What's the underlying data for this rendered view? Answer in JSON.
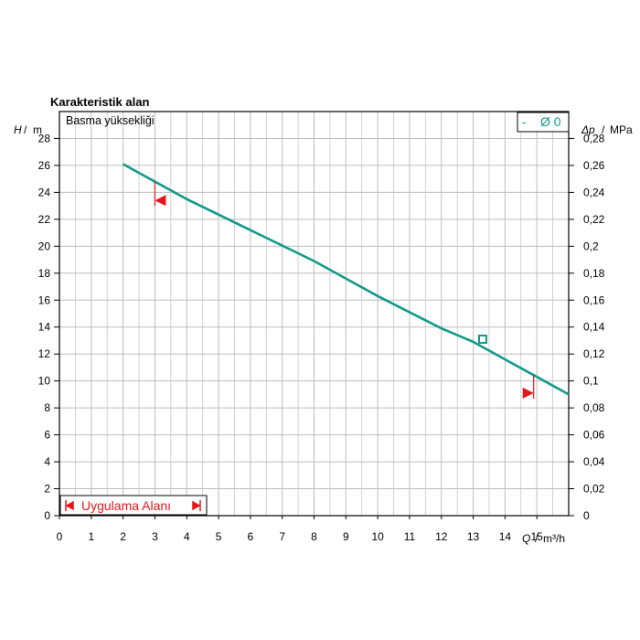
{
  "chart_data": {
    "type": "line",
    "title": "Karakteristik alan",
    "curve_label": "Basma yüksekliği",
    "y_axis": {
      "label": "H",
      "unit": "m",
      "range": [
        0,
        30
      ],
      "tick_labels": [
        "0",
        "2",
        "4",
        "6",
        "8",
        "10",
        "12",
        "14",
        "16",
        "18",
        "20",
        "22",
        "24",
        "26",
        "28"
      ]
    },
    "y2_axis": {
      "label": "Δp",
      "unit": "MPa",
      "range": [
        0,
        0.3
      ],
      "tick_labels": [
        "0",
        "0,02",
        "0,04",
        "0,06",
        "0,08",
        "0,1",
        "0,12",
        "0,14",
        "0,16",
        "0,18",
        "0,2",
        "0,22",
        "0,24",
        "0,26",
        "0,28"
      ]
    },
    "x_axis": {
      "label": "Q",
      "unit": "m³/h",
      "range": [
        0,
        16
      ],
      "tick_labels": [
        "0",
        "1",
        "2",
        "3",
        "4",
        "5",
        "6",
        "7",
        "8",
        "9",
        "10",
        "11",
        "12",
        "13",
        "14",
        "15"
      ]
    },
    "grid": true,
    "legend": {
      "position": "top-right",
      "entries": [
        "-",
        "Ø 0"
      ]
    },
    "series": [
      {
        "x": [
          2,
          4,
          6,
          8,
          10,
          12,
          13,
          14,
          15,
          16
        ],
        "y": [
          26.1,
          23.5,
          21.2,
          18.9,
          16.3,
          13.9,
          12.9,
          11.6,
          10.3,
          9.0
        ]
      }
    ],
    "operating_point": {
      "x": 13.3,
      "y": 13.1
    },
    "application_range": {
      "label": "Uygulama Alanı",
      "min_x": 3.0,
      "max_x": 14.9,
      "min_marker_y": 23.4,
      "max_marker_y": 9.1
    },
    "colors": {
      "curve": "#139a8a",
      "marker": "#e8141b",
      "grid": "#c8c8c8"
    }
  }
}
